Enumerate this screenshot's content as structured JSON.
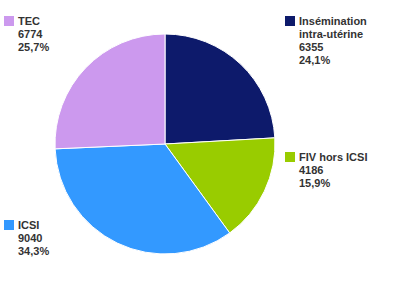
{
  "chart_data": {
    "type": "pie",
    "categories": [
      "Insémination\nintra-utérine",
      "FIV hors ICSI",
      "ICSI",
      "TEC"
    ],
    "values": [
      6355,
      4186,
      9040,
      6774
    ],
    "percentages": [
      24.1,
      15.9,
      34.3,
      25.7
    ],
    "percentage_labels": [
      "24,1%",
      "15,9%",
      "34,3%",
      "25,7%"
    ],
    "colors": [
      "#0d1a6b",
      "#99cc00",
      "#3399ff",
      "#cc99ee"
    ]
  }
}
